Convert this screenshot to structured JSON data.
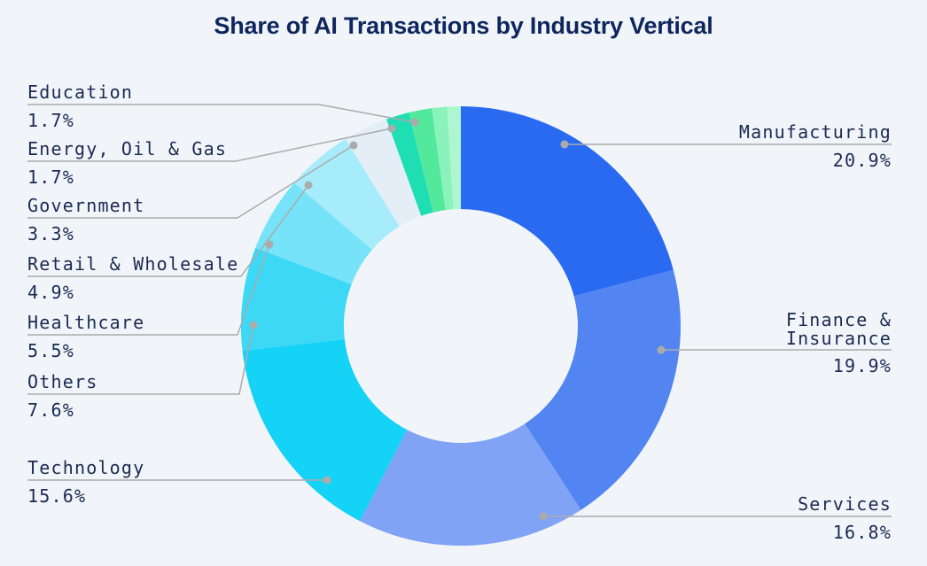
{
  "title": "Share of AI Transactions by Industry Vertical",
  "background_color": "#f1f5f9",
  "text_color": "#1a2a52",
  "title_color": "#0e265e",
  "leader_line_color": "#ababab",
  "chart_data": {
    "type": "pie",
    "subtype": "donut",
    "title": "Share of AI Transactions by Industry Vertical",
    "unit": "%",
    "direction": "clockwise",
    "start_angle_deg": 0,
    "donut_hole_ratio": 0.53,
    "legend_position": "callout-labels",
    "grid": false,
    "segments": [
      {
        "label": "Manufacturing",
        "value": 20.9,
        "display": "20.9%",
        "color": "#2a6af0",
        "label_visible": true,
        "label_side": "right"
      },
      {
        "label": "Finance & Insurance",
        "value": 19.9,
        "display": "19.9%",
        "color": "#5285f1",
        "label_visible": true,
        "label_side": "right"
      },
      {
        "label": "Services",
        "value": 16.8,
        "display": "16.8%",
        "color": "#81a3f5",
        "label_visible": true,
        "label_side": "right"
      },
      {
        "label": "Technology",
        "value": 15.6,
        "display": "15.6%",
        "color": "#15d2f7",
        "label_visible": true,
        "label_side": "left"
      },
      {
        "label": "Others",
        "value": 7.6,
        "display": "7.6%",
        "color": "#3cd8f5",
        "label_visible": true,
        "label_side": "left"
      },
      {
        "label": "Healthcare",
        "value": 5.5,
        "display": "5.5%",
        "color": "#76e3f8",
        "label_visible": true,
        "label_side": "left"
      },
      {
        "label": "Retail & Wholesale",
        "value": 4.9,
        "display": "4.9%",
        "color": "#a7ecfb",
        "label_visible": true,
        "label_side": "left"
      },
      {
        "label": "Government",
        "value": 3.3,
        "display": "3.3%",
        "color": "#e3eef7",
        "label_visible": true,
        "label_side": "left"
      },
      {
        "label": "Energy, Oil & Gas",
        "value": 1.7,
        "display": "1.7%",
        "color": "#1fdeb3",
        "label_visible": true,
        "label_side": "left"
      },
      {
        "label": "Education",
        "value": 1.7,
        "display": "1.7%",
        "color": "#53e99d",
        "label_visible": true,
        "label_side": "left"
      },
      {
        "label": "",
        "value": 1.1,
        "display": "",
        "color": "#8af3bb",
        "label_visible": false,
        "label_side": "none"
      },
      {
        "label": "",
        "value": 1.0,
        "display": "",
        "color": "#aef6cf",
        "label_visible": false,
        "label_side": "none"
      }
    ]
  }
}
